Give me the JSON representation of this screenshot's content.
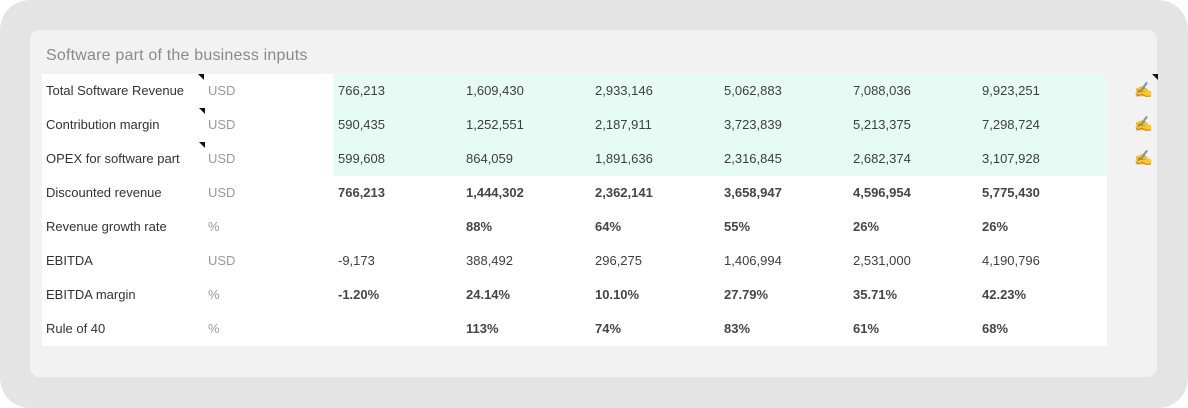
{
  "section_title": "Software part of the business inputs",
  "rows": [
    {
      "label": "Total Software Revenue",
      "unit": "USD",
      "values": [
        "766,213",
        "1,609,430",
        "2,933,146",
        "5,062,883",
        "7,088,036",
        "9,923,251"
      ],
      "input": true,
      "bold": false
    },
    {
      "label": "Contribution margin",
      "unit": "USD",
      "values": [
        "590,435",
        "1,252,551",
        "2,187,911",
        "3,723,839",
        "5,213,375",
        "7,298,724"
      ],
      "input": true,
      "bold": false
    },
    {
      "label": "OPEX for software part",
      "unit": "USD",
      "values": [
        "599,608",
        "864,059",
        "1,891,636",
        "2,316,845",
        "2,682,374",
        "3,107,928"
      ],
      "input": true,
      "bold": false
    },
    {
      "label": "Discounted revenue",
      "unit": "USD",
      "values": [
        "766,213",
        "1,444,302",
        "2,362,141",
        "3,658,947",
        "4,596,954",
        "5,775,430"
      ],
      "input": false,
      "bold": true
    },
    {
      "label": "Revenue growth rate",
      "unit": "%",
      "values": [
        "",
        "88%",
        "64%",
        "55%",
        "26%",
        "26%"
      ],
      "input": false,
      "bold": true
    },
    {
      "label": "EBITDA",
      "unit": "USD",
      "values": [
        "-9,173",
        "388,492",
        "296,275",
        "1,406,994",
        "2,531,000",
        "4,190,796"
      ],
      "input": false,
      "bold": false
    },
    {
      "label": "EBITDA margin",
      "unit": "%",
      "values": [
        "-1.20%",
        "24.14%",
        "10.10%",
        "27.79%",
        "35.71%",
        "42.23%"
      ],
      "input": false,
      "bold": true
    },
    {
      "label": "Rule of 40",
      "unit": "%",
      "values": [
        "",
        "113%",
        "74%",
        "83%",
        "61%",
        "68%"
      ],
      "input": false,
      "bold": true
    }
  ],
  "edit_icon": "✍",
  "colors": {
    "input_bg": "#e6fbf3",
    "card_bg": "#f2f2f2",
    "outer_bg": "#e4e4e4"
  }
}
